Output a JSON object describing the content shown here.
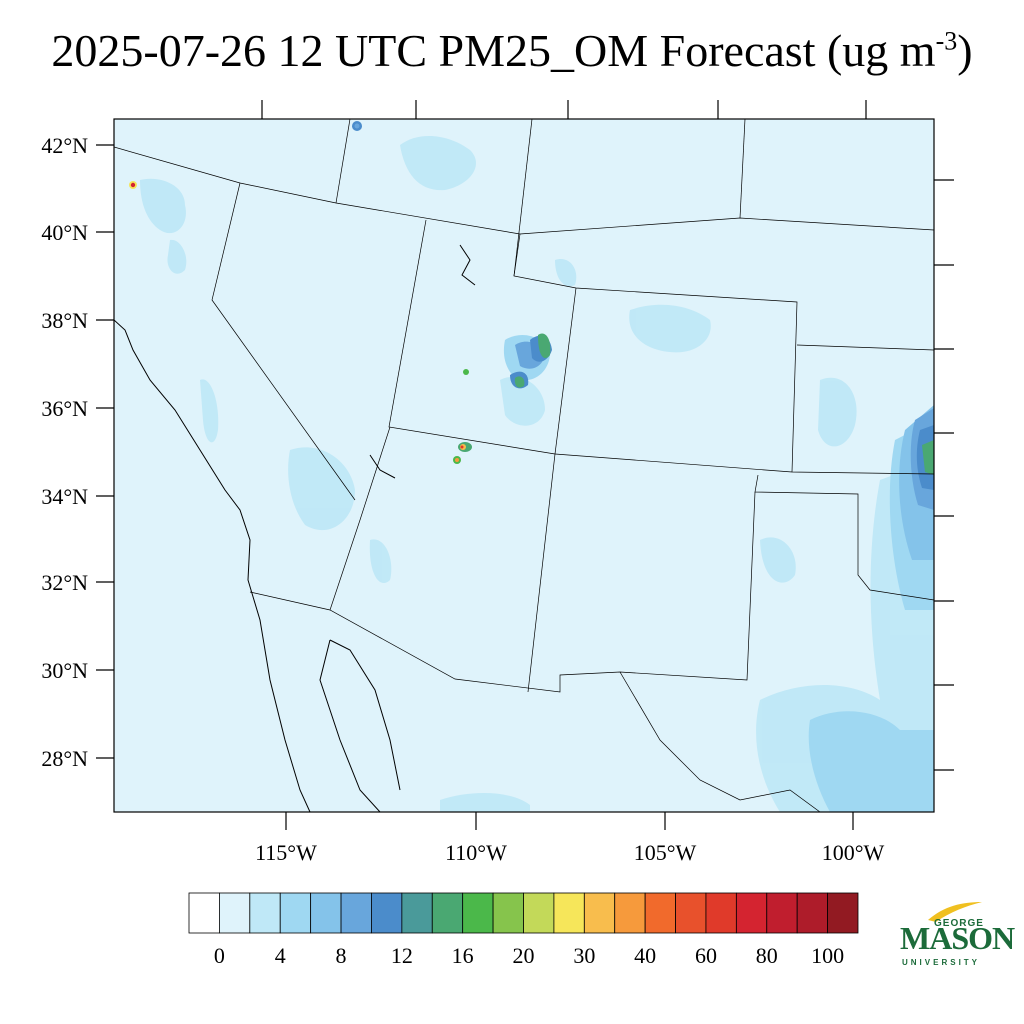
{
  "title": {
    "main": "2025-07-26 12 UTC PM25_OM Forecast (ug m",
    "exponent": "-3",
    "close": ")"
  },
  "map": {
    "lat_labels": [
      "42°N",
      "40°N",
      "38°N",
      "36°N",
      "34°N",
      "32°N",
      "30°N",
      "28°N"
    ],
    "lon_labels": [
      "115°W",
      "110°W",
      "105°W",
      "100°W"
    ],
    "background_color": "#dff3fb"
  },
  "colorbar": {
    "labels": [
      "0",
      "4",
      "8",
      "12",
      "16",
      "20",
      "30",
      "40",
      "60",
      "80",
      "100"
    ],
    "colors": [
      "#ffffff",
      "#dff3fb",
      "#bfe8f7",
      "#9fd8f2",
      "#84c3ea",
      "#68a6dc",
      "#4b8ccb",
      "#4a9a9a",
      "#4aa872",
      "#4bb84a",
      "#86c44c",
      "#c3d959",
      "#f6e65a",
      "#f8bd4d",
      "#f69a3c",
      "#f16a2c",
      "#e8512c",
      "#e03a2a",
      "#d42430",
      "#c01e2e",
      "#ae1c2a",
      "#921a22"
    ]
  },
  "logo": {
    "line1": "GEORGE",
    "line2": "MASON",
    "line3": "UNIVERSITY",
    "color": "#1c6b3a",
    "accent": "#f0c020"
  }
}
